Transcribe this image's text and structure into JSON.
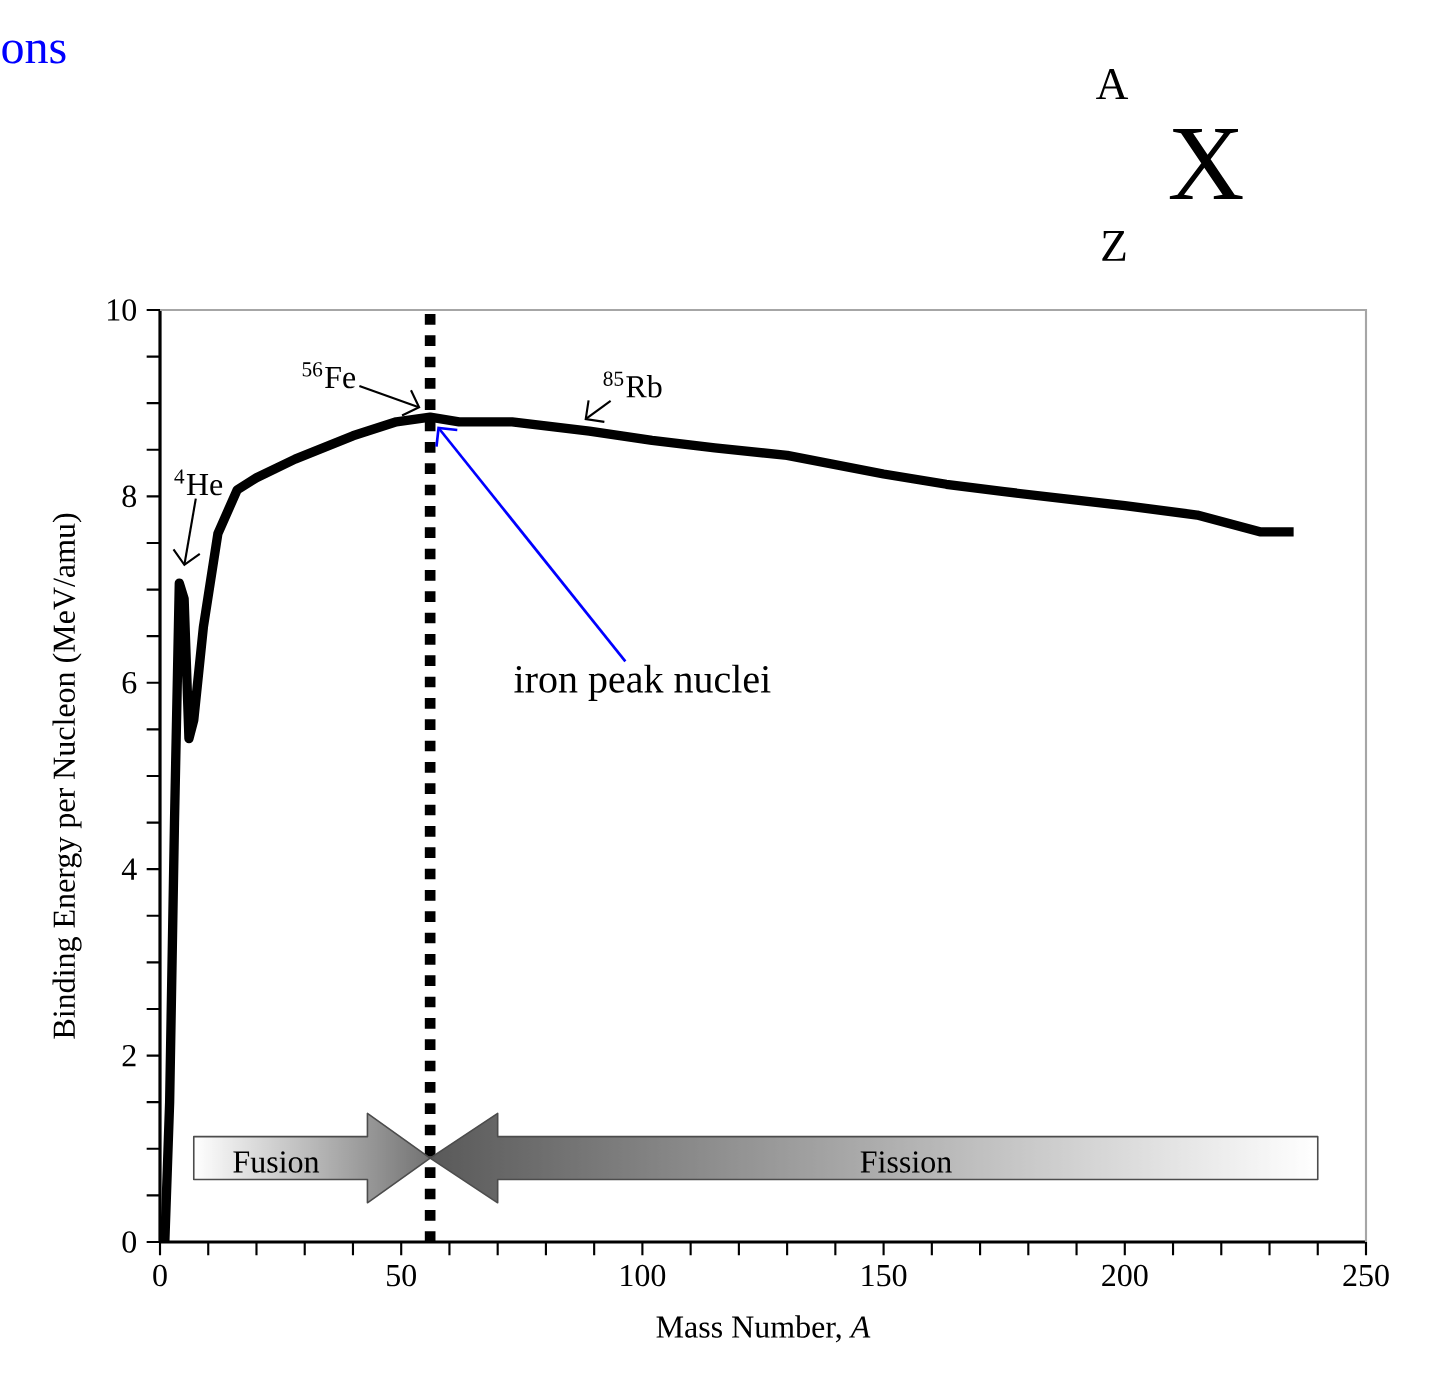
{
  "chart_data": {
    "type": "line",
    "xlabel": "Mass Number, *A*",
    "ylabel": "Binding Energy per Nucleon (MeV/amu)",
    "series": [
      {
        "color": "#000000",
        "x": [
          1,
          2,
          3,
          4,
          5,
          6,
          7,
          9,
          12,
          16,
          20,
          28,
          40,
          49,
          56,
          62,
          73,
          89,
          102,
          115,
          130,
          150,
          163,
          175,
          190,
          200,
          215,
          228,
          235
        ],
        "values": [
          0,
          1.5,
          4.5,
          7.07,
          6.9,
          5.4,
          5.6,
          6.6,
          7.6,
          8.07,
          8.2,
          8.4,
          8.65,
          8.8,
          8.85,
          8.8,
          8.8,
          8.7,
          8.6,
          8.52,
          8.44,
          8.24,
          8.13,
          8.05,
          7.96,
          7.9,
          7.8,
          7.62,
          7.62
        ]
      }
    ],
    "xlim": [
      0,
      250
    ],
    "ylim": [
      0,
      10
    ],
    "xticks": [
      0,
      {
        "value": 10,
        "label": null
      },
      {
        "value": 20,
        "label": null
      },
      {
        "value": 30,
        "label": null
      },
      {
        "value": 40,
        "label": null
      },
      50,
      {
        "value": 60,
        "label": null
      },
      {
        "value": 70,
        "label": null
      },
      {
        "value": 80,
        "label": null
      },
      {
        "value": 90,
        "label": null
      },
      100,
      {
        "value": 110,
        "label": null
      },
      {
        "value": 120,
        "label": null
      },
      {
        "value": 130,
        "label": null
      },
      {
        "value": 140,
        "label": null
      },
      150,
      {
        "value": 160,
        "label": null
      },
      {
        "value": 170,
        "label": null
      },
      {
        "value": 180,
        "label": null
      },
      {
        "value": 190,
        "label": null
      },
      200,
      {
        "value": 210,
        "label": null
      },
      {
        "value": 220,
        "label": null
      },
      {
        "value": 230,
        "label": null
      },
      {
        "value": 240,
        "label": null
      },
      250
    ],
    "yticks": [
      0,
      {
        "value": 0.5,
        "label": null
      },
      {
        "value": 1,
        "label": null
      },
      {
        "value": 1.5,
        "label": null
      },
      2,
      {
        "value": 2.5,
        "label": null
      },
      {
        "value": 3,
        "label": null
      },
      {
        "value": 3.5,
        "label": null
      },
      4,
      {
        "value": 4.5,
        "label": null
      },
      {
        "value": 5,
        "label": null
      },
      {
        "value": 5.5,
        "label": null
      },
      6,
      {
        "value": 6.5,
        "label": null
      },
      {
        "value": 7,
        "label": null
      },
      {
        "value": 7.5,
        "label": null
      },
      8,
      {
        "value": 8.5,
        "label": null
      },
      {
        "value": 9,
        "label": null
      },
      {
        "value": 9.5,
        "label": null
      },
      10
    ],
    "ref_lines": [
      {
        "axis": "x",
        "value": 56,
        "line_style": "dotted",
        "color": "#000000"
      }
    ],
    "grid": false,
    "marker": "none",
    "line_style": "solid",
    "annotations": [
      {
        "text": "$^{4}$He",
        "x": 4,
        "y": 7.07
      },
      {
        "text": "$^{56}$Fe",
        "x": 56,
        "y": 8.85
      },
      {
        "text": "$^{85}$Rb",
        "x": 89,
        "y": 8.7
      },
      {
        "text": "iron peak nuclei",
        "x": 56,
        "y": 8.85
      },
      "Fusion",
      "Fission",
      "ons",
      "A",
      "Z",
      "X"
    ]
  }
}
